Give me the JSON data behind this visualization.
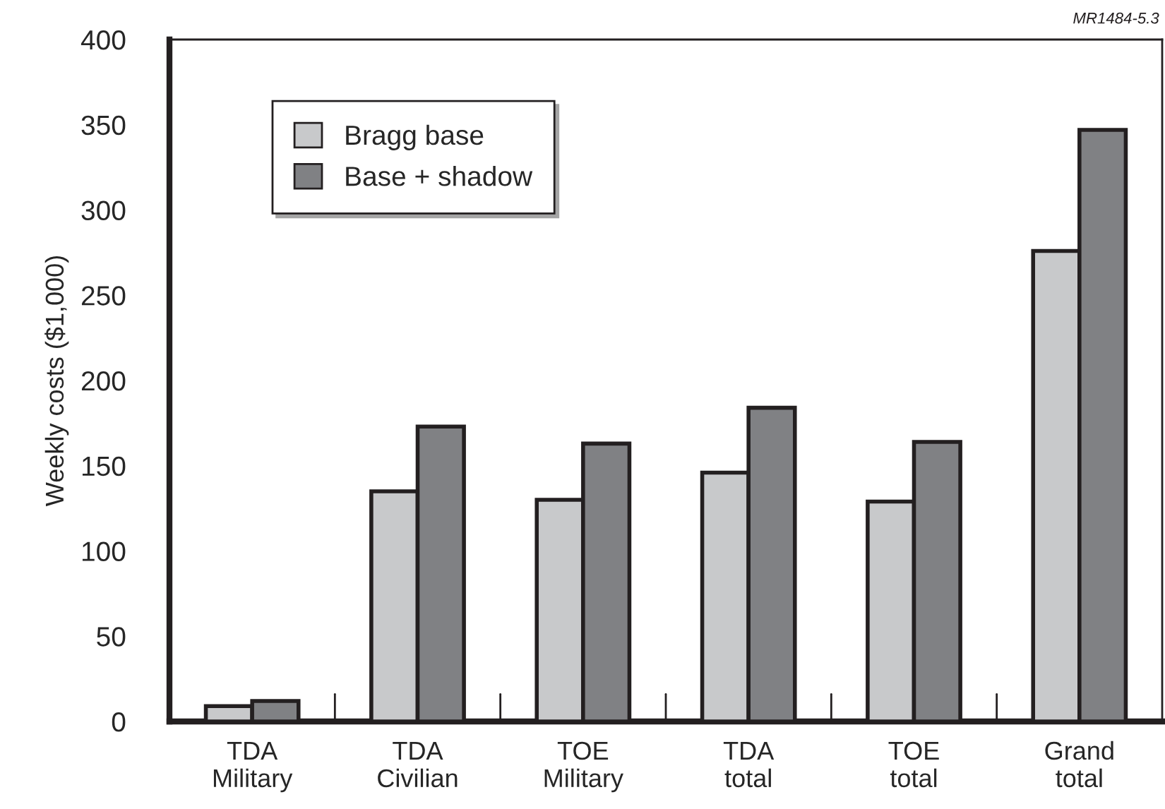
{
  "chart_data": {
    "type": "bar",
    "ylabel": "Weekly costs ($1,000)",
    "categories": [
      "TDA\nMilitary",
      "TDA\nCivilian",
      "TOE\nMilitary",
      "TDA\ntotal",
      "TOE\ntotal",
      "Grand\ntotal"
    ],
    "series": [
      {
        "name": "Bragg base",
        "color": "#c8c9cb",
        "values": [
          9,
          135,
          130,
          146,
          129,
          276
        ]
      },
      {
        "name": "Base + shadow",
        "color": "#808184",
        "values": [
          12,
          173,
          163,
          184,
          164,
          347
        ]
      }
    ],
    "ylim": [
      0,
      400
    ],
    "yticks": [
      0,
      50,
      100,
      150,
      200,
      250,
      300,
      350,
      400
    ],
    "grid": false,
    "legend": "top left",
    "annotations": [
      "MR1484-5.3"
    ]
  }
}
